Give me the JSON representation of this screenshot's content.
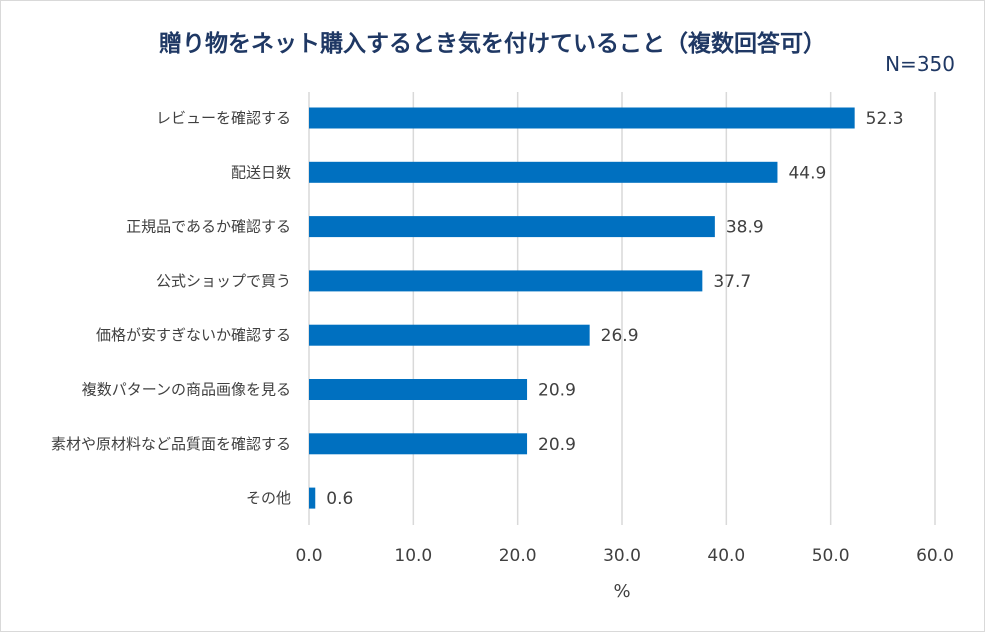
{
  "header": {
    "title": "贈り物をネット購入するとき気を付けていること（複数回答可）",
    "sample_note": "N=350"
  },
  "chart_data": {
    "type": "bar",
    "orientation": "horizontal",
    "title": "贈り物をネット購入するとき気を付けていること（複数回答可）",
    "annotation": "N=350",
    "categories": [
      "レビューを確認する",
      "配送日数",
      "正規品であるか確認する",
      "公式ショップで買う",
      "価格が安すぎないか確認する",
      "複数パターンの商品画像を見る",
      "素材や原材料など品質面を確認する",
      "その他"
    ],
    "values": [
      52.3,
      44.9,
      38.9,
      37.7,
      26.9,
      20.9,
      20.9,
      0.6
    ],
    "value_labels": [
      "52.3",
      "44.9",
      "38.9",
      "37.7",
      "26.9",
      "20.9",
      "20.9",
      "0.6"
    ],
    "xlabel": "%",
    "ylabel": "",
    "xlim": [
      0,
      60
    ],
    "ticks": [
      "0.0",
      "10.0",
      "20.0",
      "30.0",
      "40.0",
      "50.0",
      "60.0"
    ],
    "tick_values": [
      0,
      10,
      20,
      30,
      40,
      50,
      60
    ],
    "grid": true,
    "legend": "none",
    "colors": {
      "bar": "#0070c0",
      "grid": "#d9d9d9",
      "title": "#1f3864",
      "text": "#404040"
    }
  }
}
